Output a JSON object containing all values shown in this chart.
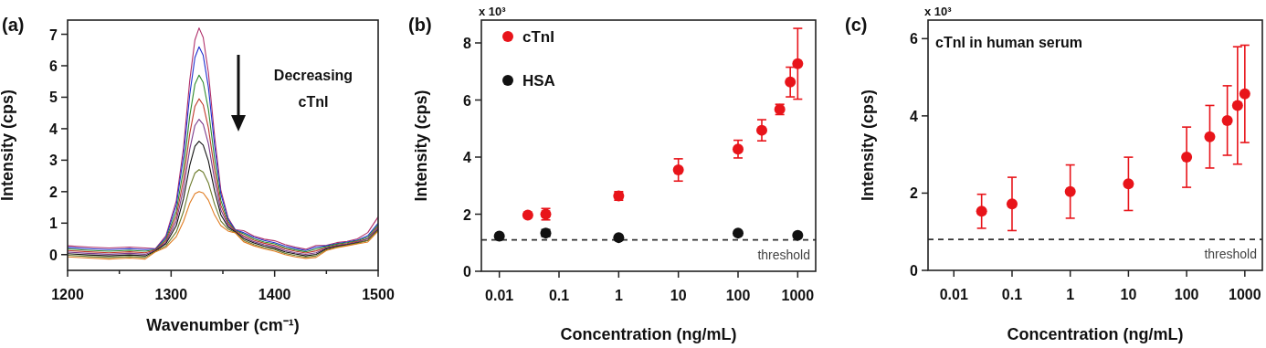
{
  "chart_data": [
    {
      "type": "line",
      "title": "(a)",
      "xlabel": "Wavenumber (cm⁻¹)",
      "ylabel": "Intensity (cps)",
      "annotations": [
        "Decreasing cTnI"
      ],
      "xlim": [
        1200,
        1500
      ],
      "xticks": [
        1200,
        {
          "value": 1250,
          "label": null
        },
        1300,
        {
          "value": 1350,
          "label": null
        },
        1400,
        {
          "value": 1450,
          "label": null
        },
        1500
      ],
      "ylim": [
        -0.5,
        7.45
      ],
      "yticks": [
        0,
        1,
        2,
        3,
        4,
        5,
        6,
        7
      ],
      "x": [
        1200,
        1220,
        1240,
        1260,
        1275,
        1285,
        1295,
        1305,
        1312,
        1318,
        1323,
        1327,
        1331,
        1336,
        1342,
        1348,
        1355,
        1362,
        1370,
        1380,
        1390,
        1400,
        1410,
        1420,
        1430,
        1440,
        1450,
        1460,
        1470,
        1480,
        1490,
        1500
      ],
      "series": [
        {
          "color": "#b0306a",
          "values": [
            0.28,
            0.24,
            0.21,
            0.24,
            0.21,
            0.19,
            0.6,
            1.71,
            3.4,
            5.53,
            6.82,
            7.2,
            6.9,
            5.79,
            3.76,
            2.06,
            1.17,
            0.79,
            0.76,
            0.59,
            0.49,
            0.44,
            0.32,
            0.24,
            0.17,
            0.29,
            0.3,
            0.38,
            0.42,
            0.5,
            0.7,
            1.2
          ]
        },
        {
          "color": "#2030d0",
          "values": [
            0.23,
            0.19,
            0.16,
            0.19,
            0.16,
            0.18,
            0.55,
            1.58,
            3.13,
            5.08,
            6.26,
            6.6,
            6.33,
            5.32,
            3.47,
            1.93,
            1.12,
            0.78,
            0.7,
            0.55,
            0.45,
            0.38,
            0.27,
            0.2,
            0.13,
            0.24,
            0.28,
            0.35,
            0.4,
            0.46,
            0.6,
            1.0
          ]
        },
        {
          "color": "#2e8b2e",
          "values": [
            0.18,
            0.14,
            0.11,
            0.14,
            0.11,
            0.16,
            0.49,
            1.38,
            2.72,
            4.4,
            5.41,
            5.7,
            5.47,
            4.62,
            3.04,
            1.73,
            1.05,
            0.76,
            0.66,
            0.5,
            0.4,
            0.34,
            0.22,
            0.15,
            0.09,
            0.18,
            0.25,
            0.33,
            0.38,
            0.44,
            0.55,
            0.95
          ]
        },
        {
          "color": "#c0392b",
          "values": [
            0.13,
            0.09,
            0.06,
            0.09,
            0.06,
            0.15,
            0.44,
            1.22,
            2.38,
            3.84,
            4.71,
            4.95,
            4.76,
            4.03,
            2.68,
            1.57,
            0.99,
            0.75,
            0.6,
            0.46,
            0.36,
            0.29,
            0.18,
            0.11,
            0.05,
            0.12,
            0.22,
            0.3,
            0.35,
            0.42,
            0.5,
            0.9
          ]
        },
        {
          "color": "#7a3a8a",
          "values": [
            0.08,
            0.04,
            0.01,
            0.04,
            0.01,
            0.13,
            0.39,
            1.07,
            2.09,
            3.35,
            4.1,
            4.3,
            4.14,
            3.53,
            2.37,
            1.42,
            0.94,
            0.73,
            0.56,
            0.41,
            0.31,
            0.25,
            0.13,
            0.06,
            0.01,
            0.06,
            0.2,
            0.28,
            0.33,
            0.4,
            0.5,
            0.85
          ]
        },
        {
          "color": "#111111",
          "values": [
            0.03,
            -0.01,
            -0.04,
            -0.01,
            -0.04,
            0.12,
            0.35,
            0.92,
            1.78,
            2.83,
            3.44,
            3.6,
            3.48,
            2.98,
            2.03,
            1.27,
            0.88,
            0.72,
            0.51,
            0.37,
            0.27,
            0.2,
            0.09,
            0.02,
            -0.04,
            0.01,
            0.18,
            0.26,
            0.31,
            0.38,
            0.45,
            0.8
          ]
        },
        {
          "color": "#6b7a2a",
          "values": [
            -0.02,
            -0.06,
            -0.09,
            -0.06,
            -0.09,
            0.1,
            0.28,
            0.72,
            1.37,
            2.15,
            2.59,
            2.7,
            2.62,
            2.28,
            1.6,
            1.07,
            0.81,
            0.7,
            0.46,
            0.32,
            0.22,
            0.16,
            0.04,
            -0.03,
            -0.08,
            -0.04,
            0.15,
            0.24,
            0.3,
            0.36,
            0.45,
            0.78
          ]
        },
        {
          "color": "#e07b20",
          "values": [
            -0.07,
            -0.11,
            -0.14,
            -0.11,
            -0.14,
            0.09,
            0.23,
            0.57,
            1.06,
            1.63,
            1.94,
            2.0,
            1.96,
            1.73,
            1.26,
            0.92,
            0.75,
            0.69,
            0.41,
            0.28,
            0.18,
            0.11,
            0.0,
            -0.07,
            -0.12,
            -0.09,
            0.13,
            0.22,
            0.28,
            0.34,
            0.4,
            0.75
          ]
        }
      ]
    },
    {
      "type": "scatter",
      "title": "(b)",
      "xlabel": "Concentration (ng/mL)",
      "ylabel": "Intensity (cps)",
      "annotations": [
        "x 10³"
      ],
      "log": "x",
      "xlim": [
        0.005,
        2000
      ],
      "xticks": [
        0.01,
        0.1,
        1,
        10,
        100,
        1000
      ],
      "ylim": [
        0,
        8.8
      ],
      "yticks": [
        0,
        2,
        4,
        6,
        8
      ],
      "marker": "circle",
      "legend": "top left",
      "ref_lines": [
        {
          "axis": "y",
          "value": 1.1,
          "label": "threshold",
          "color": "#333333",
          "line_style": "dashed"
        }
      ],
      "series": [
        {
          "name": "cTnI",
          "color": "#e8141a",
          "x": [
            0.03,
            0.06,
            1,
            10,
            100,
            250,
            500,
            750,
            1000
          ],
          "values": [
            1.97,
            2.0,
            2.64,
            3.55,
            4.28,
            4.94,
            5.67,
            6.63,
            7.27
          ],
          "errors": [
            null,
            0.2,
            0.15,
            0.39,
            0.31,
            0.37,
            0.18,
            0.52,
            1.24
          ]
        },
        {
          "name": "HSA",
          "color": "#111111",
          "x": [
            0.01,
            0.06,
            1,
            100,
            1000
          ],
          "values": [
            1.23,
            1.34,
            1.18,
            1.34,
            1.26
          ],
          "errors": [
            null,
            0.12,
            null,
            null,
            null
          ]
        }
      ]
    },
    {
      "type": "scatter",
      "title": "(c)",
      "xlabel": "Concentration (ng/mL)",
      "ylabel": "Intensity (cps)",
      "annotations": [
        "x 10³",
        "cTnI in human serum"
      ],
      "log": "x",
      "xlim": [
        0.0036,
        2000
      ],
      "xticks": [
        0.01,
        0.1,
        1,
        10,
        100,
        1000
      ],
      "ylim": [
        0,
        6.48
      ],
      "yticks": [
        0,
        2,
        4,
        6
      ],
      "marker": "circle",
      "ref_lines": [
        {
          "axis": "y",
          "value": 0.8,
          "label": "threshold",
          "color": "#333333",
          "line_style": "dashed"
        }
      ],
      "series": [
        {
          "color": "#e8141a",
          "x": [
            0.03,
            0.1,
            1,
            10,
            100,
            250,
            500,
            750,
            1000
          ],
          "values": [
            1.53,
            1.72,
            2.04,
            2.24,
            2.93,
            3.46,
            3.88,
            4.27,
            4.57
          ],
          "errors": [
            0.44,
            0.69,
            0.69,
            0.69,
            0.78,
            0.81,
            0.9,
            1.52,
            1.26
          ]
        }
      ]
    }
  ]
}
